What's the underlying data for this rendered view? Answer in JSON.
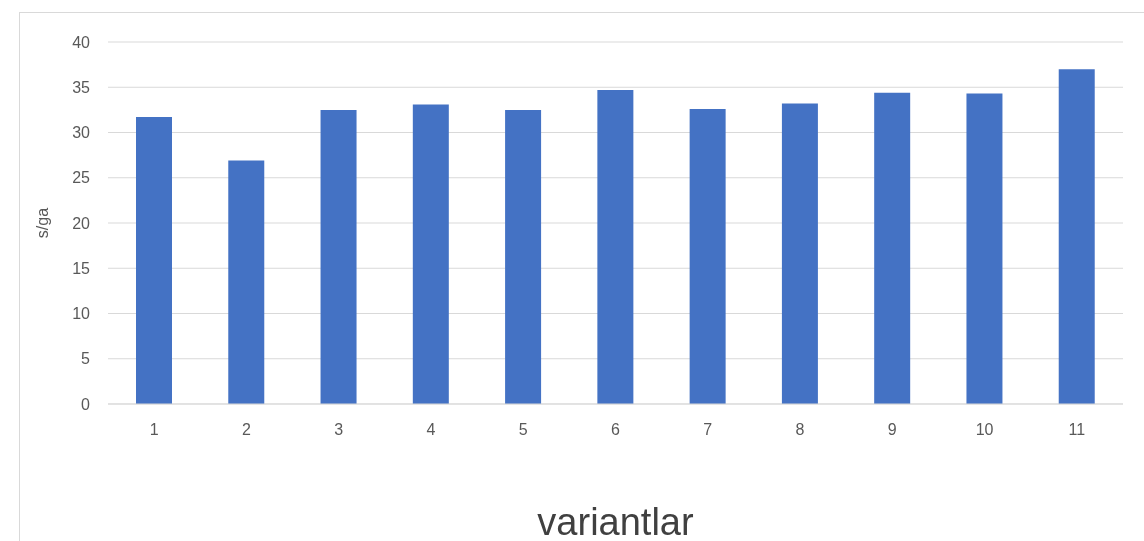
{
  "chart_data": {
    "type": "bar",
    "xlabel": "variantlar",
    "ylabel": "s/ga",
    "categories": [
      "1",
      "2",
      "3",
      "4",
      "5",
      "6",
      "7",
      "8",
      "9",
      "10",
      "11"
    ],
    "values": [
      31.7,
      26.9,
      32.5,
      33.1,
      32.5,
      34.7,
      32.6,
      33.2,
      34.4,
      34.3,
      37.0
    ],
    "color": "#4472c4",
    "ylim": [
      0,
      40
    ],
    "yticks": [
      0,
      5,
      10,
      15,
      20,
      25,
      30,
      35,
      40
    ],
    "grid": "y"
  }
}
